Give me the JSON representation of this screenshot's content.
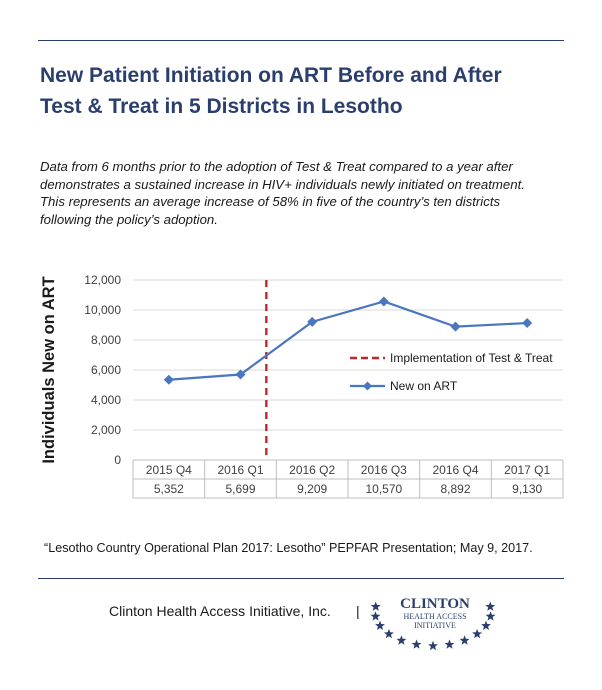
{
  "title": {
    "line1": "New Patient Initiation on ART Before and After",
    "line2": "Test & Treat in 5 Districts in Lesotho"
  },
  "description": {
    "line1": "Data from 6 months prior to the adoption of Test & Treat compared to a year after",
    "line2": "demonstrates a sustained increase in HIV+ individuals newly initiated on treatment.",
    "line3": "This represents an average increase of 58% in five of the country’s ten districts",
    "line4": "following the policy’s adoption."
  },
  "chart_data": {
    "type": "line",
    "ylabel": "Individuals New on ART",
    "xlabel": "",
    "ylim": [
      0,
      12000
    ],
    "yticks": [
      "0",
      "2,000",
      "4,000",
      "6,000",
      "8,000",
      "10,000",
      "12,000"
    ],
    "categories": [
      "2015 Q4",
      "2016 Q1",
      "2016 Q2",
      "2016 Q3",
      "2016 Q4",
      "2017 Q1"
    ],
    "series": [
      {
        "name": "New on ART",
        "values": [
          5352,
          5699,
          9209,
          10570,
          8892,
          9130
        ],
        "color": "#4a76c0",
        "marker": "diamond"
      }
    ],
    "table_values": [
      "5,352",
      "5,699",
      "9,209",
      "10,570",
      "8,892",
      "9,130"
    ],
    "annotations": [
      {
        "name": "Implementation of Test & Treat",
        "style": "dashed vertical line",
        "position": "between 2016 Q1 and 2016 Q2",
        "color": "#c0282d"
      }
    ],
    "legend": {
      "placement": "right",
      "entries": [
        "Implementation of Test & Treat",
        "New on ART"
      ]
    },
    "grid": true
  },
  "citation": "“Lesotho Country Operational Plan 2017: Lesotho” PEPFAR Presentation; May 9, 2017.",
  "footer": {
    "org": "Clinton Health Access Initiative, Inc.",
    "separator": "|",
    "logo_line1": "CLINTON",
    "logo_line2": "HEALTH ACCESS",
    "logo_line3": "INITIATIVE"
  },
  "colors": {
    "title": "#2b3f6e",
    "series": "#4a76c0",
    "annotation": "#c0282d",
    "grid": "#d9d9d9"
  }
}
